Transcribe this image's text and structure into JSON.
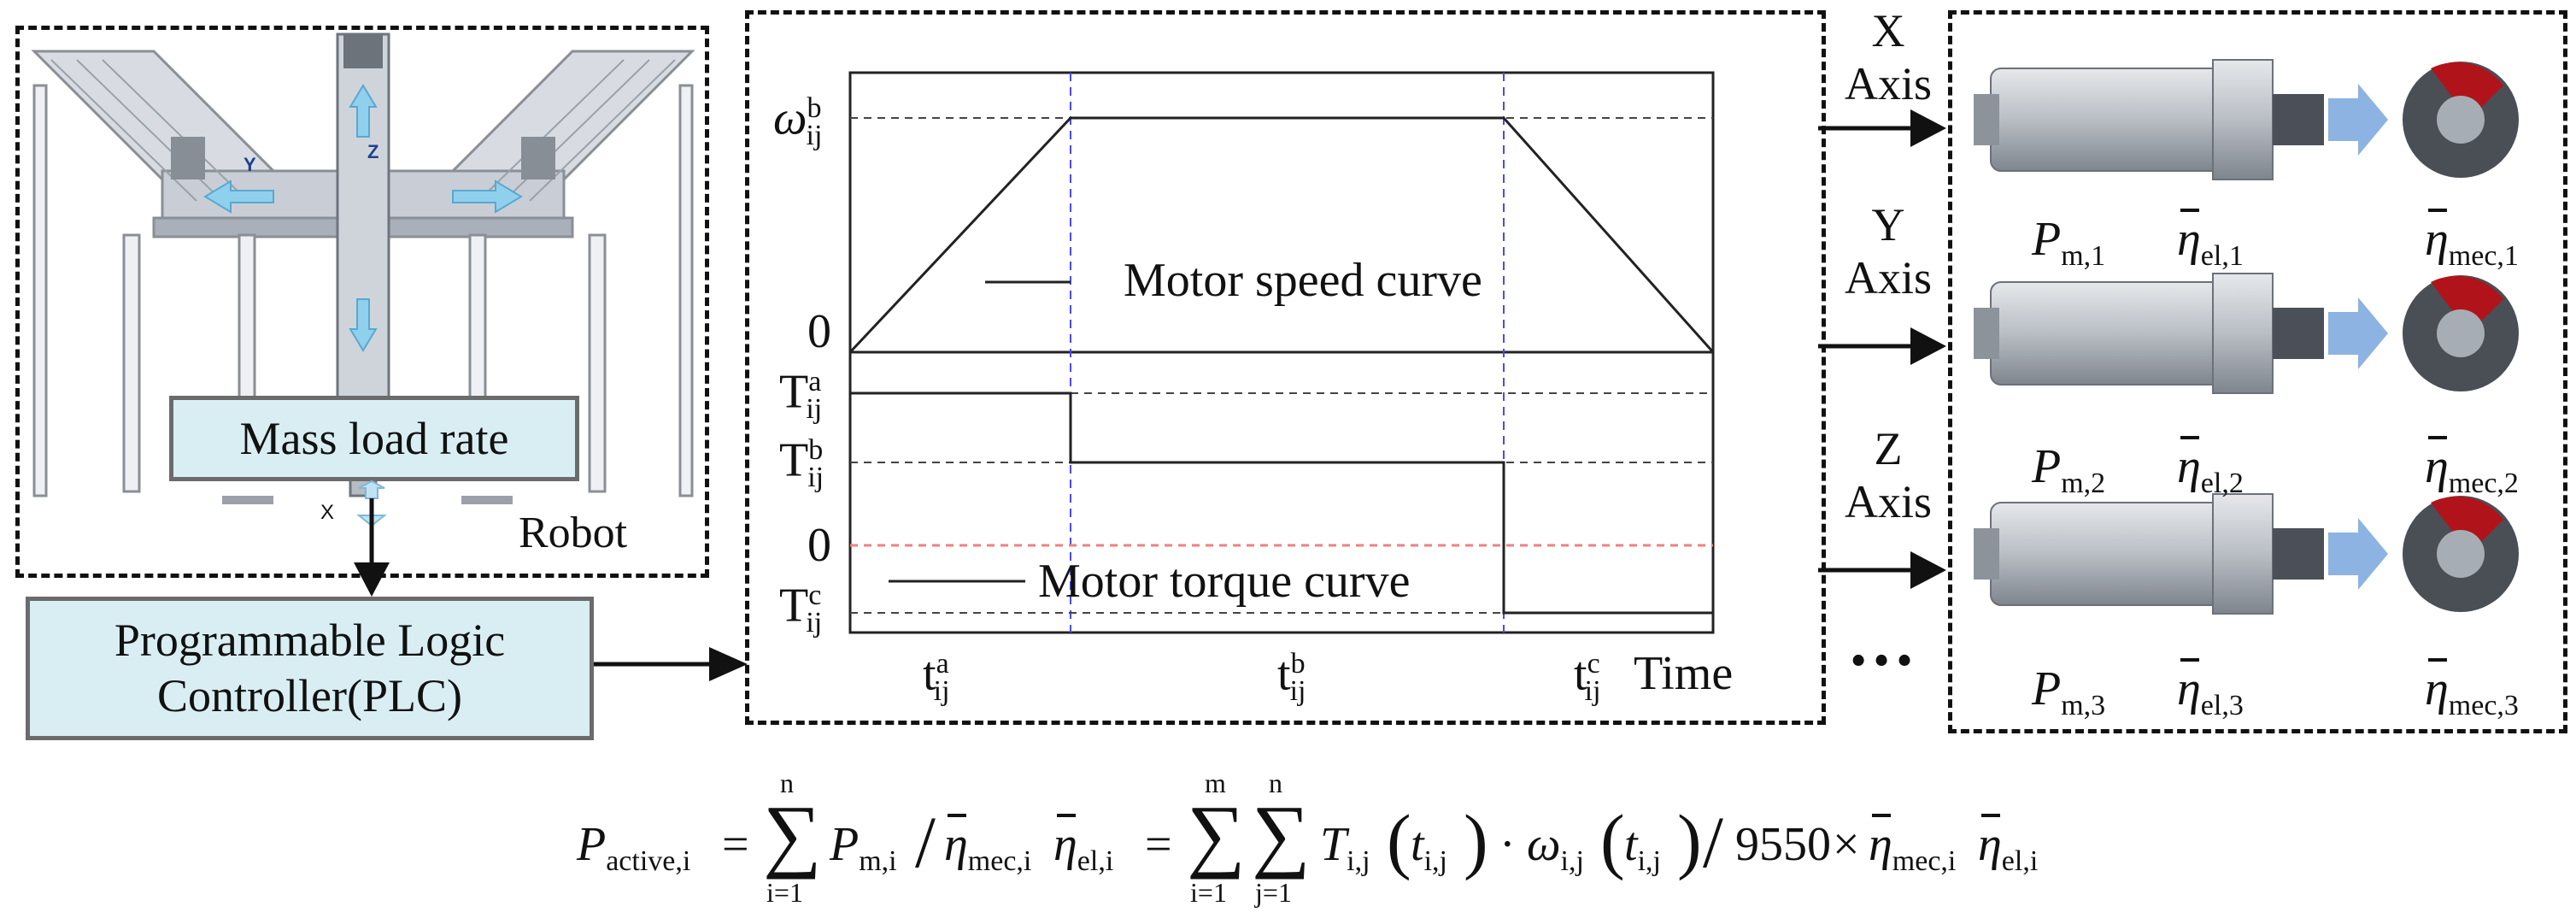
{
  "robot": {
    "label": "Robot",
    "axis_mark": "X"
  },
  "mass_box": {
    "label": "Mass load rate"
  },
  "plc_box": {
    "line1": "Programmable Logic",
    "line2": "Controller(PLC)"
  },
  "chart": {
    "legend_speed": "Motor speed curve",
    "legend_torque": "Motor torque curve",
    "y_speed_top": {
      "base": "ω",
      "sub": "ij",
      "sup": "b"
    },
    "y_speed_zero": "0",
    "y_torque_zero": "0",
    "y_Ta": {
      "base": "T",
      "sub": "ij",
      "sup": "a"
    },
    "y_Tb": {
      "base": "T",
      "sub": "ij",
      "sup": "b"
    },
    "y_Tc": {
      "base": "T",
      "sub": "ij",
      "sup": "c"
    },
    "x_ta": {
      "base": "t",
      "sub": "ij",
      "sup": "a"
    },
    "x_tb": {
      "base": "t",
      "sub": "ij",
      "sup": "b"
    },
    "x_tc": {
      "base": "t",
      "sub": "ij",
      "sup": "c"
    },
    "x_time": "Time"
  },
  "axes": [
    {
      "name": "X",
      "word": "Axis"
    },
    {
      "name": "Y",
      "word": "Axis"
    },
    {
      "name": "Z",
      "word": "Axis"
    }
  ],
  "ellipsis": "…",
  "motors": [
    {
      "p": "P",
      "p_sub": "m,1",
      "el": "η",
      "el_sub": "el,1",
      "mec": "η",
      "mec_sub": "mec,1"
    },
    {
      "p": "P",
      "p_sub": "m,2",
      "el": "η",
      "el_sub": "el,2",
      "mec": "η",
      "mec_sub": "mec,2"
    },
    {
      "p": "P",
      "p_sub": "m,3",
      "el": "η",
      "el_sub": "el,3",
      "mec": "η",
      "mec_sub": "mec,3"
    }
  ],
  "formula": {
    "lhs": "P",
    "lhs_sub": "active,i",
    "eq": "=",
    "sum1_top": "n",
    "sum1_bot": "i=1",
    "term1": "P",
    "term1_sub": "m,i",
    "slash": "/",
    "eta": "η",
    "mec_i": "mec,i",
    "el_i": "el,i",
    "sum2_top": "m",
    "sum2_bot": "i=1",
    "sum3_top": "n",
    "sum3_bot": "j=1",
    "T": "T",
    "ij": "i,j",
    "t": "t",
    "dot": "·",
    "omega": "ω",
    "const": "9550",
    "times": "×"
  },
  "colors": {
    "box_fill": "#d9eef3",
    "guide_blue": "#4a4af0",
    "zero_red": "#f08080",
    "arrow_blue": "#8db3e2",
    "motor_red": "#b0141a"
  }
}
